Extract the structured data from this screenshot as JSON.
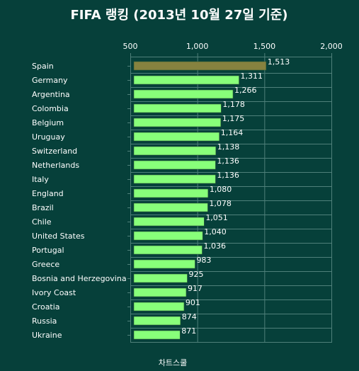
{
  "chart_data": {
    "type": "bar",
    "orientation": "horizontal",
    "title": "FIFA 랭킹 (2013년 10월 27일 기준)",
    "footer": "차트스쿨",
    "xlim": [
      500,
      2000
    ],
    "ticks": [
      500,
      1000,
      1500,
      2000
    ],
    "tick_labels": [
      "500",
      "1,000",
      "1,500",
      "2,000"
    ],
    "categories": [
      "Spain",
      "Germany",
      "Argentina",
      "Colombia",
      "Belgium",
      "Uruguay",
      "Switzerland",
      "Netherlands",
      "Italy",
      "England",
      "Brazil",
      "Chile",
      "United States",
      "Portugal",
      "Greece",
      "Bosnia and Herzegovina",
      "Ivory Coast",
      "Croatia",
      "Russia",
      "Ukraine"
    ],
    "values": [
      1513,
      1311,
      1266,
      1178,
      1175,
      1164,
      1138,
      1136,
      1136,
      1080,
      1078,
      1051,
      1040,
      1036,
      983,
      925,
      917,
      901,
      874,
      871
    ],
    "value_labels": [
      "1,513",
      "1,311",
      "1,266",
      "1,178",
      "1,175",
      "1,164",
      "1,138",
      "1,136",
      "1,136",
      "1,080",
      "1,078",
      "1,051",
      "1,040",
      "1,036",
      "983",
      "925",
      "917",
      "901",
      "874",
      "871"
    ],
    "colors": {
      "background": "#06403a",
      "bar": "#88ff7a",
      "highlight_bar": "#86823f",
      "grid": "#4f807a",
      "text": "#ffffff"
    },
    "highlight_index": 0,
    "grid": true
  }
}
